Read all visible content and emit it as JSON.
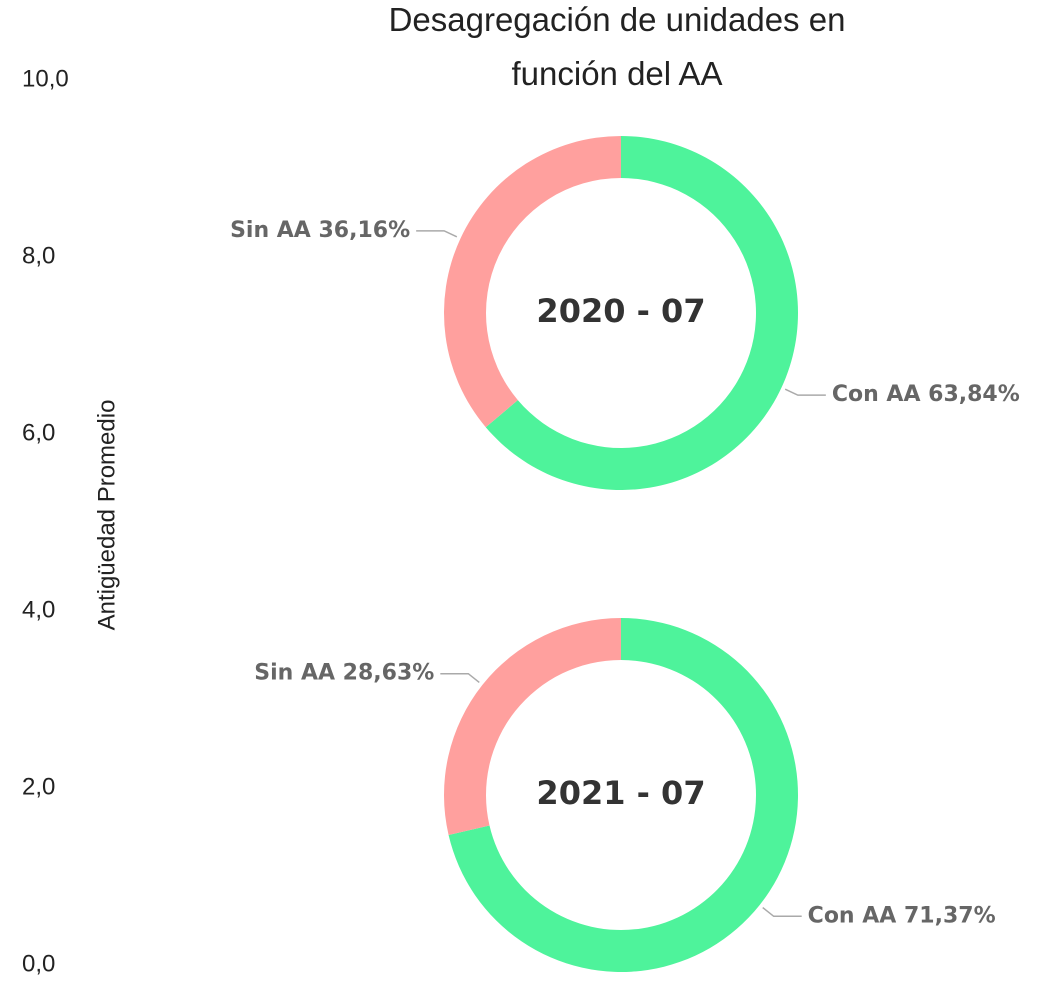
{
  "chart_data": [
    {
      "type": "axis",
      "ylabel": "Antigüedad Promedio",
      "ylim": [
        0,
        10
      ],
      "yticks": [
        {
          "value": 0,
          "label": "0,0"
        },
        {
          "value": 2,
          "label": "2,0"
        },
        {
          "value": 4,
          "label": "4,0"
        },
        {
          "value": 6,
          "label": "6,0"
        },
        {
          "value": 8,
          "label": "8,0"
        },
        {
          "value": 10,
          "label": "10,0"
        }
      ]
    },
    {
      "type": "donut",
      "title": "Desagregación de unidades en función del AA",
      "center_label": "2020 - 07",
      "categories": [
        "Con AA",
        "Sin AA"
      ],
      "values": [
        63.84,
        36.16
      ],
      "value_labels": [
        "63,84%",
        "36,16%"
      ],
      "colors": [
        "#4ef39b",
        "#ffa09e"
      ]
    },
    {
      "type": "donut",
      "center_label": "2021 - 07",
      "categories": [
        "Con AA",
        "Sin AA"
      ],
      "values": [
        71.37,
        28.63
      ],
      "value_labels": [
        "71,37%",
        "28,63%"
      ],
      "colors": [
        "#4ef39b",
        "#ffa09e"
      ]
    }
  ]
}
